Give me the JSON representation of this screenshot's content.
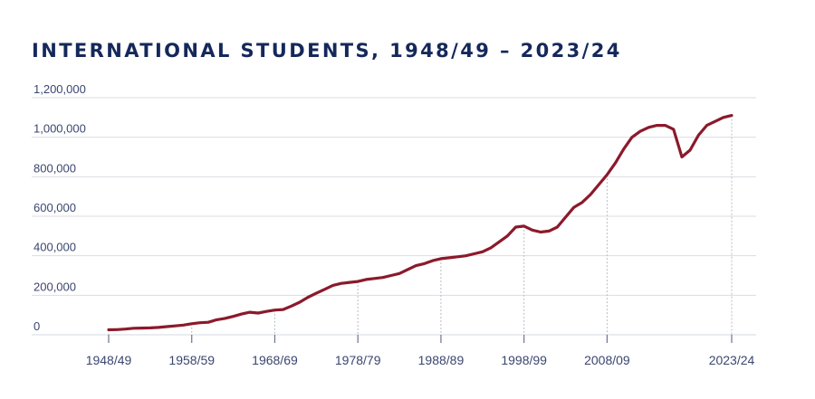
{
  "chart_data": {
    "type": "line",
    "title": "INTERNATIONAL STUDENTS, 1948/49 – 2023/24",
    "xlabel": "",
    "ylabel": "",
    "ylim": [
      0,
      1200000
    ],
    "y_ticks": [
      0,
      200000,
      400000,
      600000,
      800000,
      1000000,
      1200000
    ],
    "y_tick_labels": [
      "0",
      "200,000",
      "400,000",
      "600,000",
      "800,000",
      "1,000,000",
      "1,200,000"
    ],
    "x_tick_labels": [
      "1948/49",
      "1958/59",
      "1968/69",
      "1978/79",
      "1988/89",
      "1998/99",
      "2008/09",
      "2023/24"
    ],
    "x_tick_years": [
      1948,
      1958,
      1968,
      1978,
      1988,
      1998,
      2008,
      2023
    ],
    "grid": true,
    "legend": "none",
    "line_color": "#8b1a2b",
    "series": [
      {
        "x": [
          1948,
          1949,
          1950,
          1951,
          1952,
          1953,
          1954,
          1955,
          1956,
          1957,
          1958,
          1959,
          1960,
          1961,
          1962,
          1963,
          1964,
          1965,
          1966,
          1967,
          1968,
          1969,
          1970,
          1971,
          1972,
          1973,
          1974,
          1975,
          1976,
          1977,
          1978,
          1979,
          1980,
          1981,
          1982,
          1983,
          1984,
          1985,
          1986,
          1987,
          1988,
          1989,
          1990,
          1991,
          1992,
          1993,
          1994,
          1995,
          1996,
          1997,
          1998,
          1999,
          2000,
          2001,
          2002,
          2003,
          2004,
          2005,
          2006,
          2007,
          2008,
          2009,
          2010,
          2011,
          2012,
          2013,
          2014,
          2015,
          2016,
          2017,
          2018,
          2019,
          2020,
          2021,
          2022,
          2023
        ],
        "values": [
          25000,
          26000,
          29000,
          33000,
          34000,
          35000,
          37000,
          41000,
          45000,
          49000,
          56000,
          61000,
          63000,
          76000,
          83000,
          93000,
          105000,
          114000,
          110000,
          118000,
          125000,
          128000,
          145000,
          165000,
          190000,
          210000,
          230000,
          250000,
          260000,
          265000,
          270000,
          280000,
          285000,
          290000,
          300000,
          310000,
          330000,
          350000,
          360000,
          375000,
          385000,
          390000,
          395000,
          400000,
          410000,
          420000,
          440000,
          470000,
          500000,
          545000,
          550000,
          530000,
          520000,
          525000,
          545000,
          595000,
          645000,
          670000,
          710000,
          760000,
          810000,
          870000,
          940000,
          1000000,
          1030000,
          1050000,
          1060000,
          1060000,
          1040000,
          900000,
          935000,
          1010000,
          1060000,
          1080000,
          1100000,
          1110000
        ]
      }
    ]
  }
}
